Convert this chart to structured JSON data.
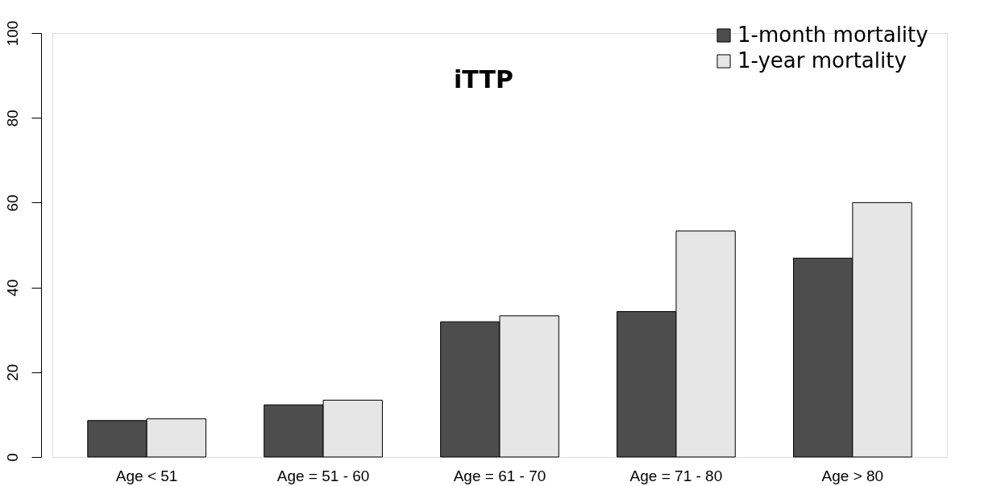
{
  "chart_data": {
    "type": "bar",
    "title": "iTTP",
    "categories": [
      "Age < 51",
      "Age = 51 - 60",
      "Age = 61 - 70",
      "Age = 71 - 80",
      "Age > 80"
    ],
    "series": [
      {
        "name": "1-month mortality",
        "color": "#4d4d4d",
        "values": [
          8.6,
          12.3,
          31.9,
          34.3,
          46.9
        ]
      },
      {
        "name": "1-year mortality",
        "color": "#e6e6e6",
        "values": [
          9.0,
          13.4,
          33.3,
          53.3,
          60
        ]
      }
    ],
    "ylim": [
      0,
      100
    ],
    "yticks": [
      0,
      20,
      40,
      60,
      80,
      100
    ],
    "grid": false,
    "legend": "top right"
  }
}
